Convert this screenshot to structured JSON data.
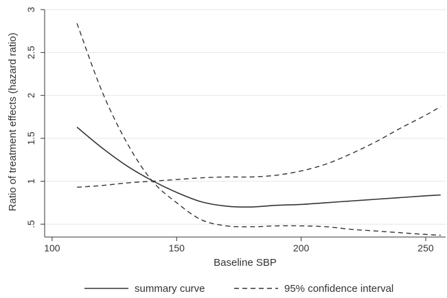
{
  "chart_data": {
    "type": "line",
    "xlabel": "Baseline SBP",
    "ylabel": "Ratio of treatment effects (hazard ratio)",
    "xlim": [
      97,
      258
    ],
    "ylim": [
      0.35,
      3.0
    ],
    "x_ticks": [
      100,
      150,
      200,
      250
    ],
    "x_tick_labels": [
      "100",
      "150",
      "200",
      "250"
    ],
    "y_ticks": [
      0.5,
      1,
      1.5,
      2,
      2.5,
      3
    ],
    "y_tick_labels": [
      ".5",
      "1",
      "1.5",
      "2",
      "2.5",
      "3"
    ],
    "grid": "horizontal",
    "legend_position": "bottom",
    "series": [
      {
        "name": "summary curve",
        "style": "solid",
        "color": "#333333",
        "x": [
          110,
          120,
          130,
          140,
          150,
          160,
          170,
          180,
          190,
          200,
          210,
          220,
          230,
          240,
          250,
          256
        ],
        "y": [
          1.63,
          1.39,
          1.18,
          1.01,
          0.87,
          0.76,
          0.71,
          0.7,
          0.72,
          0.73,
          0.75,
          0.77,
          0.79,
          0.81,
          0.83,
          0.84
        ]
      },
      {
        "name": "95% confidence interval",
        "style": "dashed",
        "color": "#333333",
        "x": [
          110,
          120,
          130,
          140,
          150,
          160,
          170,
          180,
          190,
          200,
          210,
          220,
          230,
          240,
          250,
          256
        ],
        "y": [
          2.84,
          2.05,
          1.45,
          1.01,
          0.75,
          0.55,
          0.48,
          0.47,
          0.48,
          0.48,
          0.47,
          0.44,
          0.42,
          0.4,
          0.38,
          0.37
        ]
      },
      {
        "name": "95% confidence interval",
        "style": "dashed",
        "color": "#333333",
        "x": [
          110,
          120,
          130,
          140,
          150,
          160,
          170,
          180,
          190,
          200,
          210,
          220,
          230,
          240,
          250,
          256
        ],
        "y": [
          0.93,
          0.95,
          0.98,
          1.0,
          1.02,
          1.04,
          1.05,
          1.05,
          1.07,
          1.12,
          1.2,
          1.32,
          1.46,
          1.62,
          1.77,
          1.87
        ]
      }
    ],
    "legend": [
      {
        "label": "summary curve",
        "style": "solid"
      },
      {
        "label": "95% confidence interval",
        "style": "dashed"
      }
    ]
  }
}
